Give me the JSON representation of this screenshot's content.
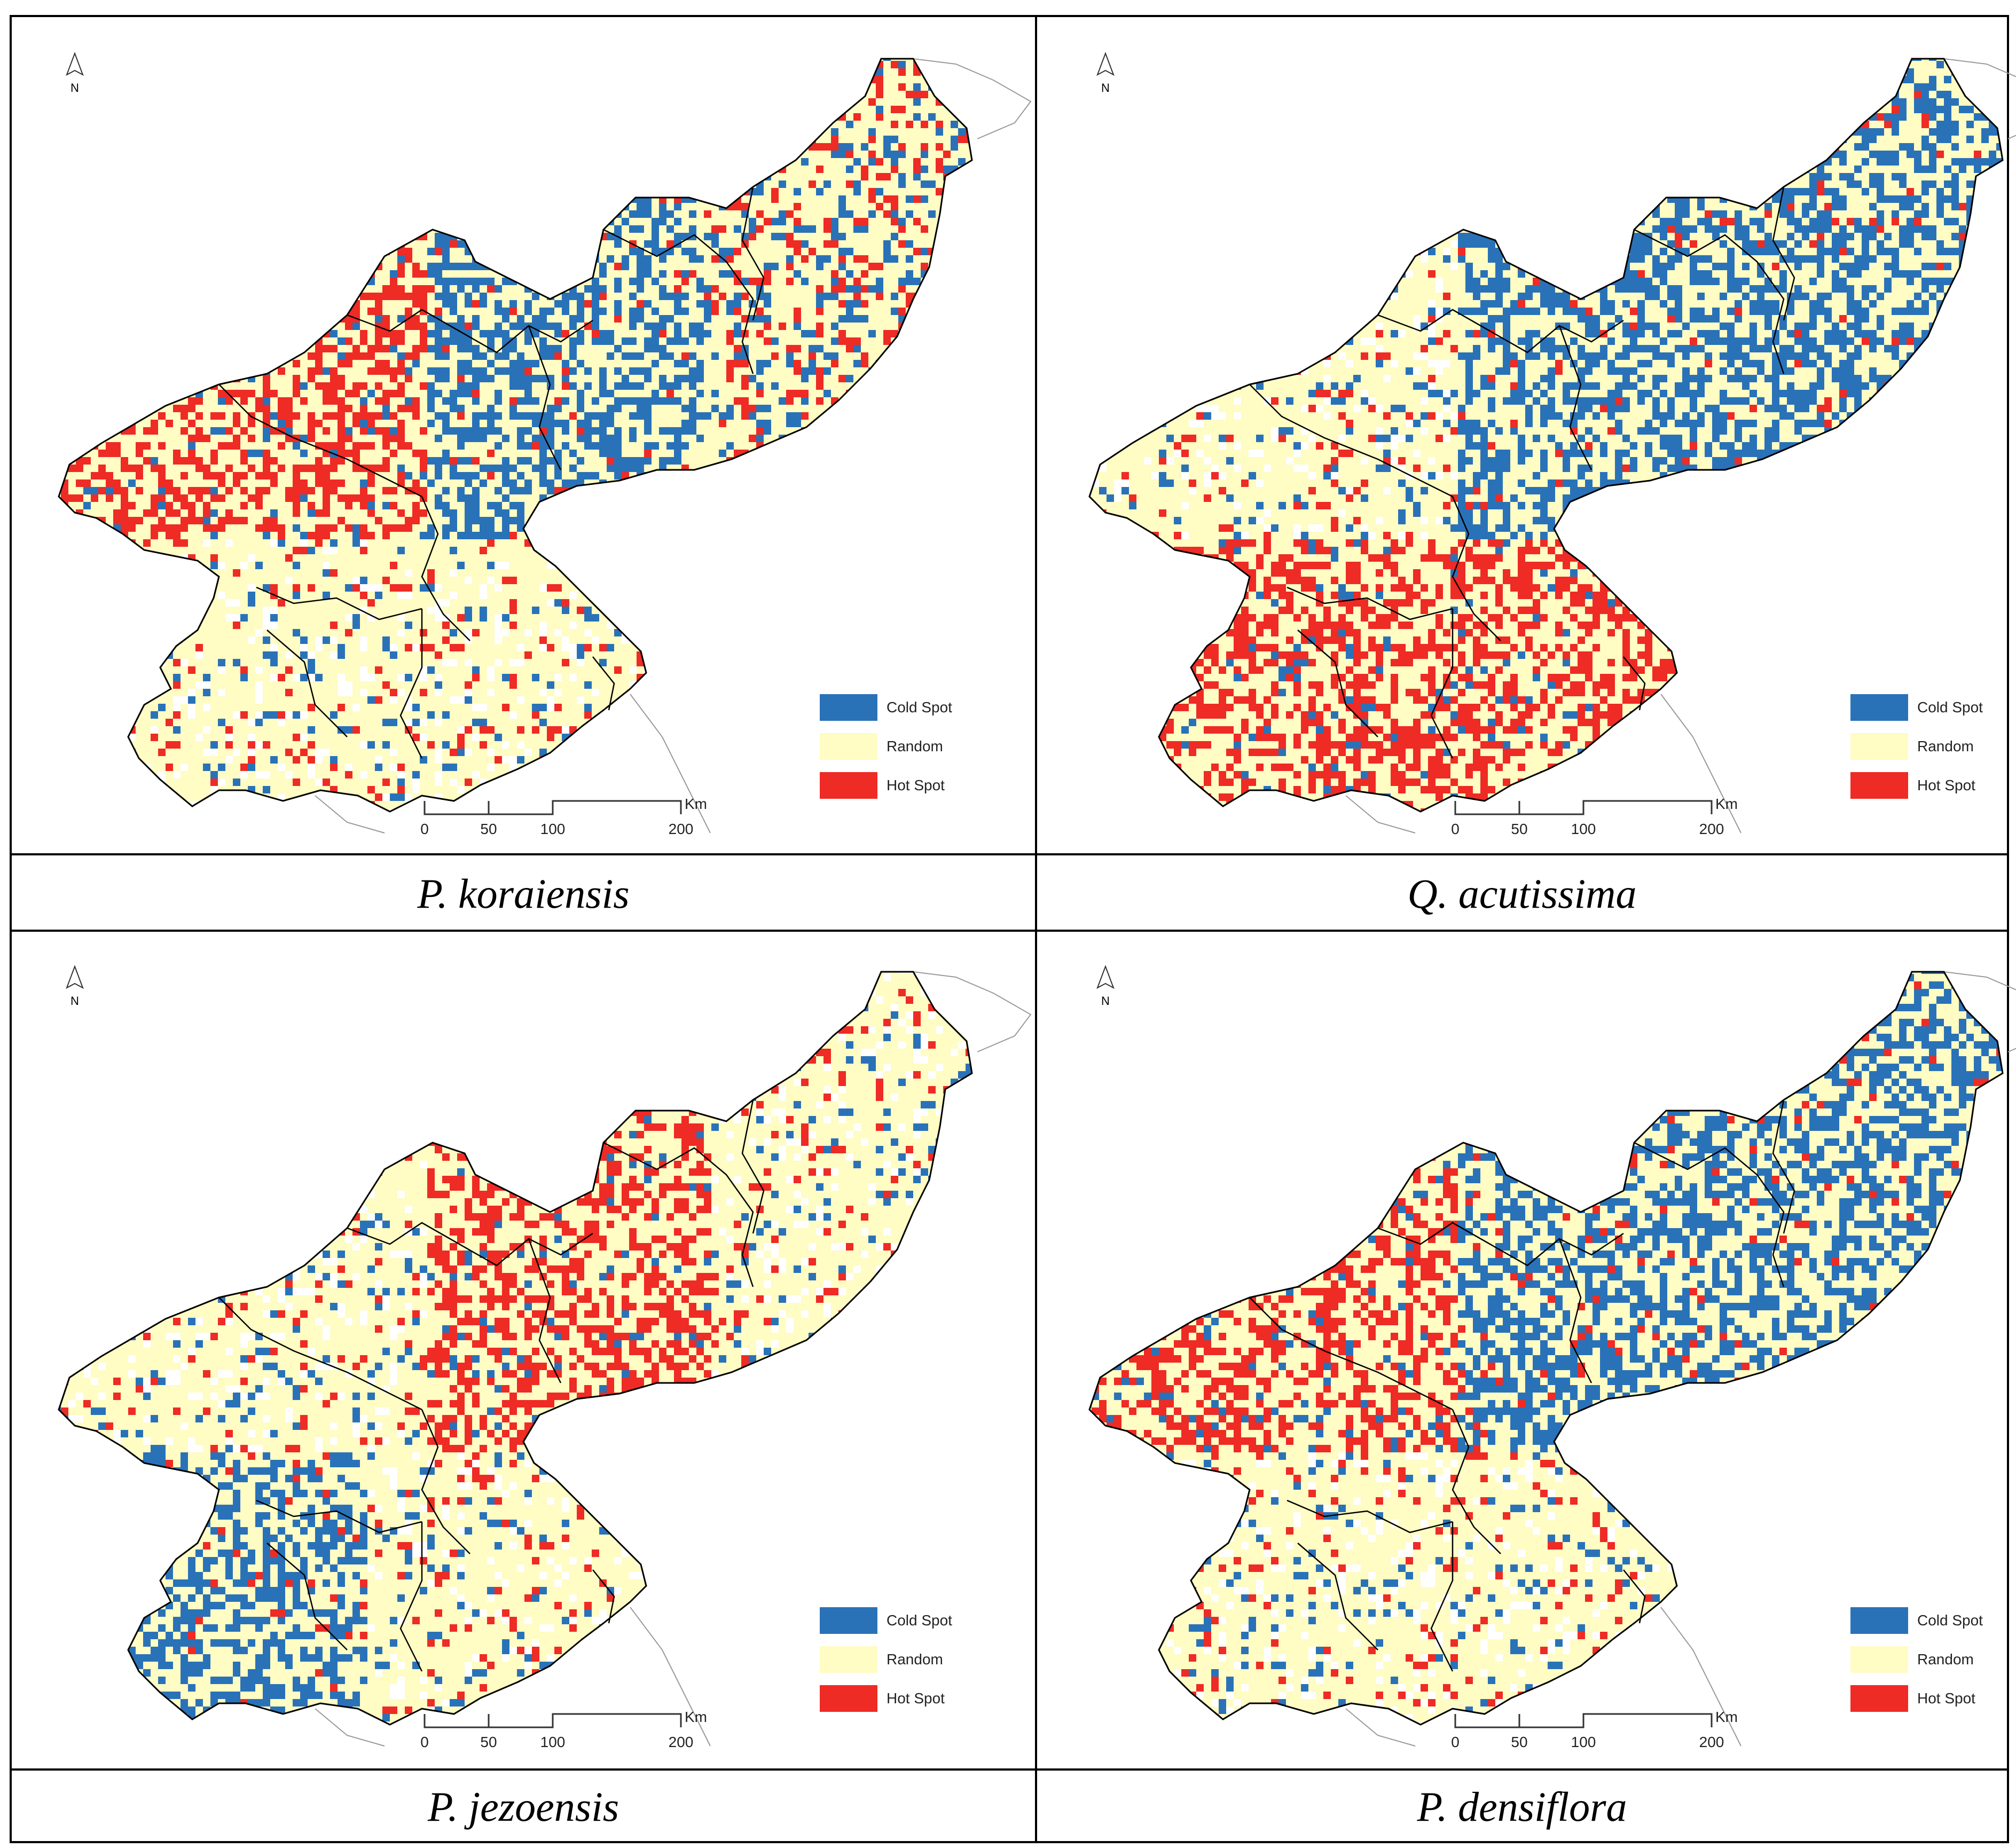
{
  "figure": {
    "panels": [
      {
        "caption": "P. koraiensis",
        "legend": [
          "Cold Spot",
          "Random",
          "Hot Spot"
        ],
        "scale_labels": [
          "0",
          "50",
          "100",
          "200"
        ],
        "scale_unit": "Km",
        "north": "N",
        "dominant_pattern": {
          "north_west": "hot",
          "north_center": "cold",
          "north_east": "mixed",
          "south_west": "random",
          "south_east": "random"
        }
      },
      {
        "caption": "Q. acutissima",
        "legend": [
          "Cold Spot",
          "Random",
          "Hot Spot"
        ],
        "scale_labels": [
          "0",
          "50",
          "100",
          "200"
        ],
        "scale_unit": "Km",
        "north": "N",
        "dominant_pattern": {
          "north_west": "random",
          "north_center": "cold",
          "north_east": "cold",
          "south_west": "hot",
          "south_east": "hot"
        }
      },
      {
        "caption": "P. jezoensis",
        "legend": [
          "Cold Spot",
          "Random",
          "Hot Spot"
        ],
        "scale_labels": [
          "0",
          "50",
          "100",
          "200"
        ],
        "scale_unit": "Km",
        "north": "N",
        "dominant_pattern": {
          "north_west": "random",
          "north_center": "hot",
          "north_east": "random",
          "south_west": "cold",
          "south_east": "random"
        }
      },
      {
        "caption": "P. densiflora",
        "legend": [
          "Cold Spot",
          "Random",
          "Hot Spot"
        ],
        "scale_labels": [
          "0",
          "50",
          "100",
          "200"
        ],
        "scale_unit": "Km",
        "north": "N",
        "dominant_pattern": {
          "north_west": "hot",
          "north_center": "cold",
          "north_east": "cold",
          "south_west": "random",
          "south_east": "random"
        }
      }
    ],
    "colors": {
      "cold_spot": "#2a72b8",
      "random": "#fffcc4",
      "hot_spot": "#ee2b24",
      "outline": "#000000",
      "neighbor_outline": "#9a9a9a"
    }
  }
}
